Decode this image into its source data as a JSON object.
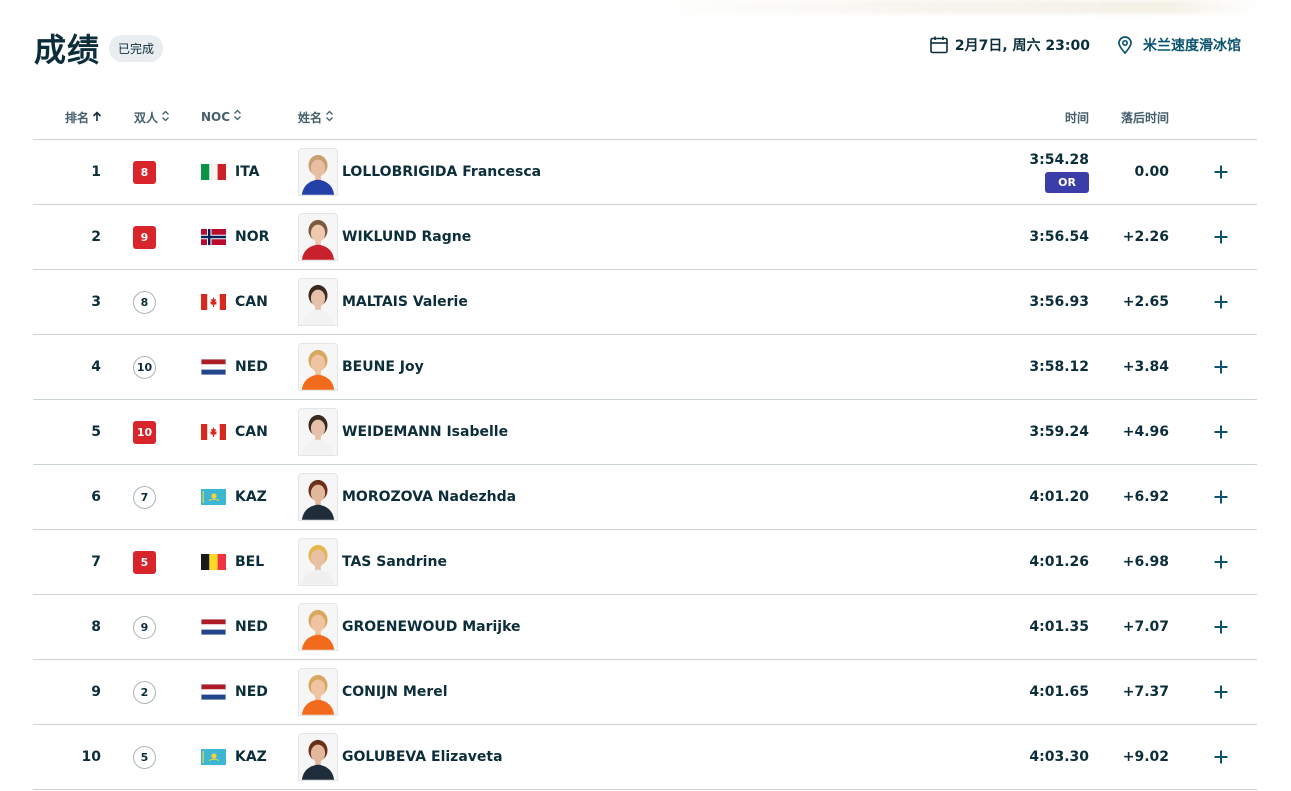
{
  "header": {
    "title": "成绩",
    "status": "已完成",
    "date": "2月7日, 周六 23:00",
    "venue": "米兰速度滑冰馆"
  },
  "columns": {
    "rank": "排名",
    "pair": "双人",
    "noc": "NOC",
    "name": "姓名",
    "time": "时间",
    "behind": "落后时间"
  },
  "rows": [
    {
      "rank": "1",
      "pair": "8",
      "pair_style": "red",
      "noc": "ITA",
      "name": "LOLLOBRIGIDA Francesca",
      "time": "3:54.28",
      "badge": "OR",
      "behind": "0.00"
    },
    {
      "rank": "2",
      "pair": "9",
      "pair_style": "red",
      "noc": "NOR",
      "name": "WIKLUND Ragne",
      "time": "3:56.54",
      "badge": "",
      "behind": "+2.26"
    },
    {
      "rank": "3",
      "pair": "8",
      "pair_style": "white",
      "noc": "CAN",
      "name": "MALTAIS Valerie",
      "time": "3:56.93",
      "badge": "",
      "behind": "+2.65"
    },
    {
      "rank": "4",
      "pair": "10",
      "pair_style": "white",
      "noc": "NED",
      "name": "BEUNE Joy",
      "time": "3:58.12",
      "badge": "",
      "behind": "+3.84"
    },
    {
      "rank": "5",
      "pair": "10",
      "pair_style": "red",
      "noc": "CAN",
      "name": "WEIDEMANN Isabelle",
      "time": "3:59.24",
      "badge": "",
      "behind": "+4.96"
    },
    {
      "rank": "6",
      "pair": "7",
      "pair_style": "white",
      "noc": "KAZ",
      "name": "MOROZOVA Nadezhda",
      "time": "4:01.20",
      "badge": "",
      "behind": "+6.92"
    },
    {
      "rank": "7",
      "pair": "5",
      "pair_style": "red",
      "noc": "BEL",
      "name": "TAS Sandrine",
      "time": "4:01.26",
      "badge": "",
      "behind": "+6.98"
    },
    {
      "rank": "8",
      "pair": "9",
      "pair_style": "white",
      "noc": "NED",
      "name": "GROENEWOUD Marijke",
      "time": "4:01.35",
      "badge": "",
      "behind": "+7.07"
    },
    {
      "rank": "9",
      "pair": "2",
      "pair_style": "white",
      "noc": "NED",
      "name": "CONIJN Merel",
      "time": "4:01.65",
      "badge": "",
      "behind": "+7.37"
    },
    {
      "rank": "10",
      "pair": "5",
      "pair_style": "white",
      "noc": "KAZ",
      "name": "GOLUBEVA Elizaveta",
      "time": "4:03.30",
      "badge": "",
      "behind": "+9.02"
    }
  ],
  "icons": {
    "sort_active": "arrow-up-icon",
    "sort_idle": "sort-icon",
    "expand": "plus-icon",
    "calendar": "calendar-icon",
    "location": "location-pin-icon"
  },
  "colors": {
    "text": "#0b2e3a",
    "pair_red": "#d8242b",
    "or_badge": "#3b3ea8",
    "expand": "#0b5470"
  }
}
